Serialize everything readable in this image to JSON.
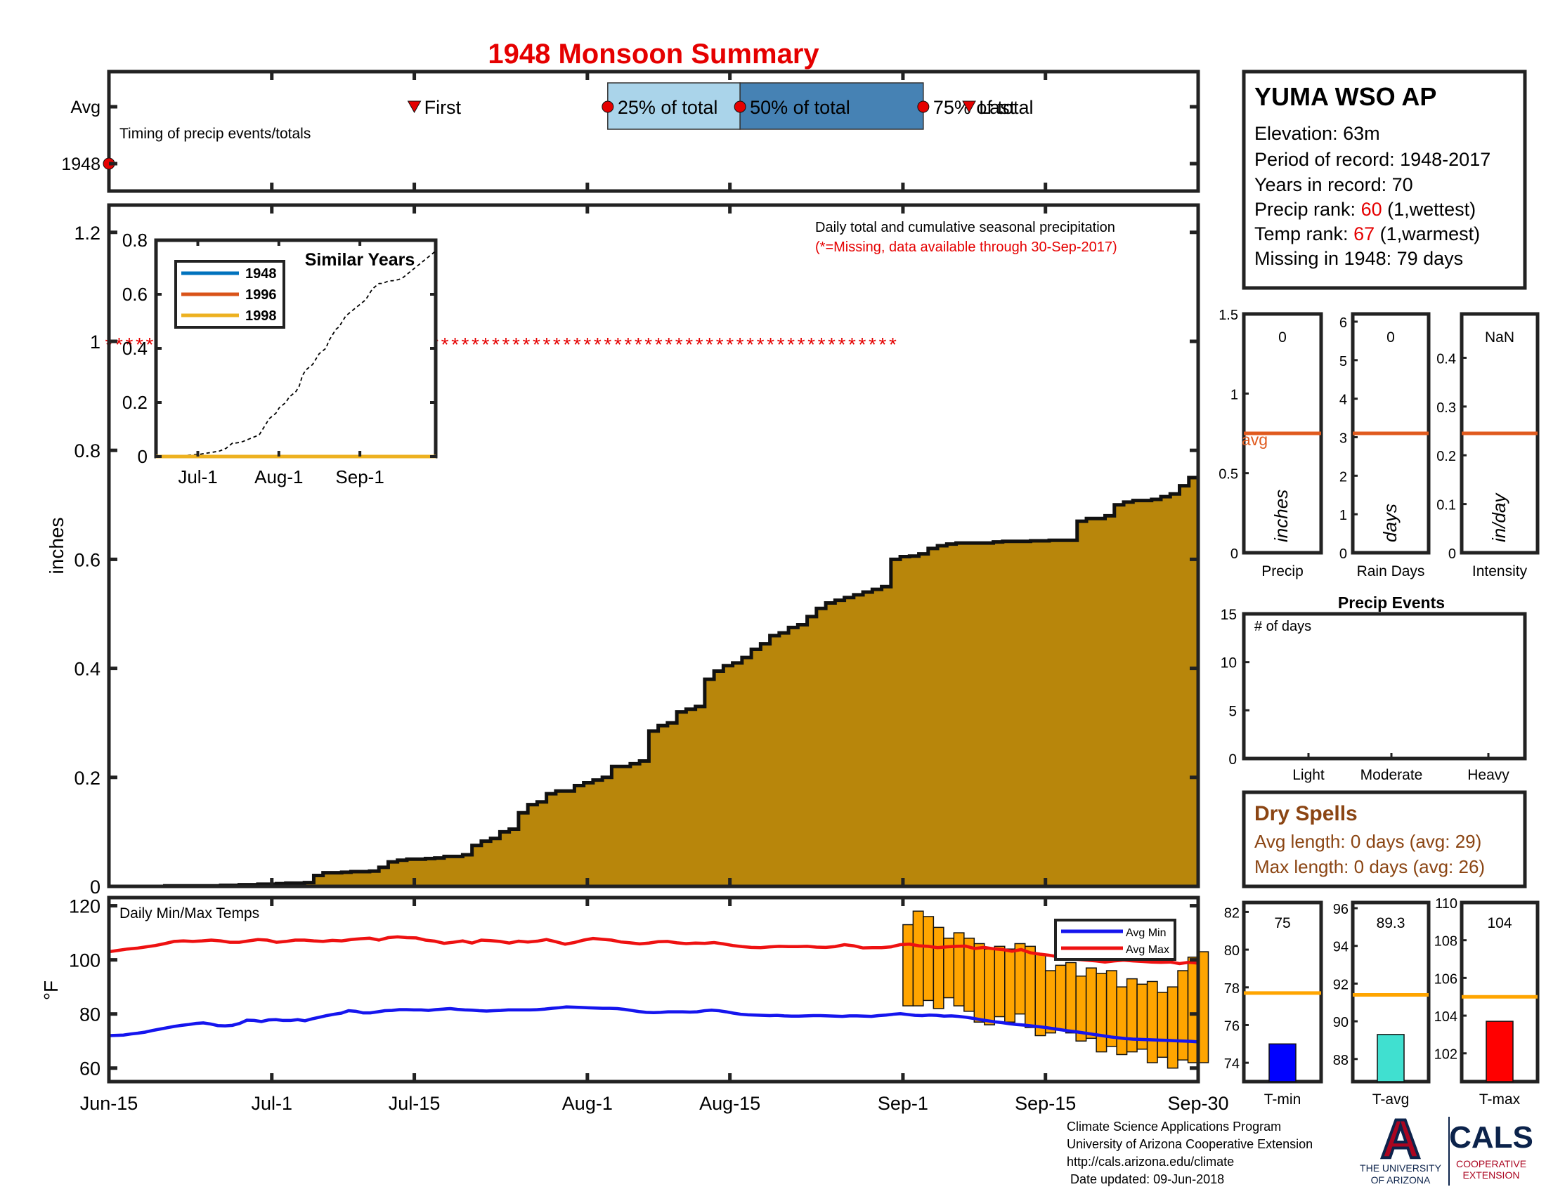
{
  "title": "1948 Monsoon Summary",
  "colors": {
    "title": "#e50000",
    "cum_fill": "#b8860b",
    "max_line": "#ee1111",
    "min_line": "#1515ee",
    "temp_bar": "#ffa500",
    "avg_orange": "#e05a1e",
    "avg_yellow": "#ffa500",
    "q25": "#aad4ea",
    "q50": "#4682b4",
    "dry": "#8b4513"
  },
  "timing": {
    "row_labels": [
      "Avg",
      "1948"
    ],
    "caption": "Timing of precip events/totals",
    "avg_markers": [
      {
        "label": "First",
        "x": 30,
        "kind": "triangle"
      },
      {
        "label": "25% of total",
        "x": 49,
        "kind": "dot"
      },
      {
        "label": "50% of total",
        "x": 62,
        "kind": "dot"
      },
      {
        "label": "75% of total",
        "x": 80,
        "kind": "dot"
      },
      {
        "label": "Last",
        "x": 84.5,
        "kind": "triangle"
      }
    ],
    "year_markers": [
      {
        "x": 0,
        "kind": "dot"
      }
    ]
  },
  "station": {
    "name": "YUMA WSO AP",
    "elevation": "Elevation: 63m",
    "period": "Period of record: 1948-2017",
    "years": "Years in record: 70",
    "precip_rank_label": "Precip rank: ",
    "precip_rank": "60",
    "precip_rank_suffix": " (1,wettest)",
    "temp_rank_label": "Temp rank: ",
    "temp_rank": "67",
    "temp_rank_suffix": " (1,warmest)",
    "missing": "Missing in 1948: 79 days"
  },
  "main_chart": {
    "ylabel": "inches",
    "ylim": [
      0,
      1.25
    ],
    "yticks": [
      "0",
      "0.2",
      "0.4",
      "0.6",
      "0.8",
      "1",
      "1.2"
    ],
    "caption": "Daily total and cumulative seasonal precipitation",
    "missing_note": "(*=Missing, data available through 30-Sep-2017)",
    "missing_marker": "*",
    "missing_y": 1.0,
    "missing_range": [
      0,
      77
    ],
    "xtick_labels": [
      "Jun-15",
      "Jul-1",
      "Jul-15",
      "Aug-1",
      "Aug-15",
      "Sep-1",
      "Sep-15",
      "Sep-30"
    ],
    "xtick_days": [
      0,
      16,
      30,
      47,
      61,
      78,
      92,
      107
    ]
  },
  "chart_data": [
    {
      "type": "area",
      "title": "",
      "caption": "Daily total and cumulative seasonal precipitation",
      "ylabel": "inches",
      "ylim": [
        0,
        1.25
      ],
      "x_start": "Jun-15",
      "x_end": "Sep-30",
      "series": [
        {
          "name": "",
          "step_day": 1,
          "values": [
            0,
            0,
            0,
            0,
            0,
            0,
            0.001,
            0.001,
            0.001,
            0.001,
            0.001,
            0.001,
            0.002,
            0.002,
            0.003,
            0.003,
            0.004,
            0.004,
            0.005,
            0.006,
            0.006,
            0.007,
            0.02,
            0.025,
            0.025,
            0.026,
            0.027,
            0.027,
            0.028,
            0.035,
            0.045,
            0.048,
            0.05,
            0.05,
            0.051,
            0.052,
            0.055,
            0.055,
            0.058,
            0.075,
            0.083,
            0.088,
            0.1,
            0.105,
            0.135,
            0.15,
            0.155,
            0.17,
            0.175,
            0.175,
            0.185,
            0.19,
            0.195,
            0.2,
            0.22,
            0.22,
            0.225,
            0.23,
            0.285,
            0.295,
            0.3,
            0.32,
            0.325,
            0.33,
            0.38,
            0.395,
            0.405,
            0.41,
            0.42,
            0.435,
            0.445,
            0.46,
            0.465,
            0.475,
            0.48,
            0.495,
            0.51,
            0.52,
            0.525,
            0.53,
            0.535,
            0.54,
            0.545,
            0.55,
            0.6,
            0.605,
            0.606,
            0.61,
            0.62,
            0.625,
            0.628,
            0.63,
            0.63,
            0.63,
            0.63,
            0.632,
            0.633,
            0.633,
            0.633,
            0.634,
            0.634,
            0.635,
            0.635,
            0.635,
            0.67,
            0.675,
            0.675,
            0.68,
            0.7,
            0.705,
            0.708,
            0.708,
            0.71,
            0.715,
            0.72,
            0.735,
            0.75
          ]
        }
      ]
    },
    {
      "type": "line",
      "title": "Similar Years",
      "xlim": [
        0,
        107
      ],
      "ylim": [
        0,
        0.8
      ],
      "yticks": [
        "0",
        "0.2",
        "0.4",
        "0.6",
        "0.8"
      ],
      "xtick_labels": [
        "Jul-1",
        "Aug-1",
        "Sep-1"
      ],
      "xtick_days": [
        16,
        47,
        78
      ],
      "series": [
        {
          "name": "1948",
          "color": "#0072bd",
          "values": [
            0,
            0
          ]
        },
        {
          "name": "1996",
          "color": "#d95319",
          "values": [
            0,
            0
          ]
        },
        {
          "name": "1998",
          "color": "#edb120",
          "values": [
            0,
            0
          ]
        },
        {
          "name": "",
          "style": "dashed",
          "color": "#000000",
          "values": [
            0,
            0,
            0,
            0,
            0,
            0,
            0.001,
            0.002,
            0.003,
            0.004,
            0.005,
            0.006,
            0.007,
            0.008,
            0.01,
            0.012,
            0.014,
            0.016,
            0.018,
            0.02,
            0.025,
            0.03,
            0.04,
            0.05,
            0.05,
            0.052,
            0.055,
            0.06,
            0.065,
            0.07,
            0.075,
            0.08,
            0.1,
            0.12,
            0.14,
            0.15,
            0.16,
            0.18,
            0.19,
            0.2,
            0.22,
            0.23,
            0.24,
            0.26,
            0.3,
            0.32,
            0.33,
            0.34,
            0.36,
            0.38,
            0.39,
            0.4,
            0.43,
            0.45,
            0.47,
            0.48,
            0.5,
            0.52,
            0.53,
            0.54,
            0.55,
            0.56,
            0.57,
            0.58,
            0.6,
            0.62,
            0.63,
            0.64,
            0.64,
            0.645,
            0.65,
            0.65,
            0.652,
            0.655,
            0.66,
            0.67,
            0.68,
            0.69,
            0.7,
            0.71,
            0.72,
            0.73,
            0.74,
            0.75,
            0.76
          ]
        }
      ]
    },
    {
      "type": "line",
      "title": "",
      "caption": "Daily Min/Max Temps",
      "ylabel": "°F",
      "ylim": [
        55,
        123
      ],
      "yticks": [
        "60",
        "80",
        "100",
        "120"
      ],
      "legend": [
        "Avg Min",
        "Avg Max"
      ],
      "legend_position": "top-right",
      "series": [
        {
          "name": "Avg Max",
          "color": "#ee1111",
          "values": [
            103,
            103.5,
            104,
            104.3,
            104.8,
            105.3,
            106,
            106.8,
            107,
            106.8,
            107,
            107.3,
            107,
            106.5,
            106.5,
            107,
            107.5,
            107.3,
            106.5,
            106.8,
            107.3,
            107.3,
            107,
            106.8,
            107.2,
            107,
            107.5,
            107.8,
            108,
            107.3,
            108.2,
            108.5,
            108.2,
            108.1,
            107.3,
            106.9,
            106.1,
            106.5,
            107,
            106.2,
            107.3,
            107.1,
            106.8,
            106.2,
            106.9,
            106.6,
            106.9,
            107.5,
            106.7,
            105.8,
            106.4,
            107.3,
            107.9,
            107.6,
            107.3,
            106.6,
            106.3,
            105.9,
            106.2,
            106.7,
            106.8,
            106.3,
            106,
            106.2,
            106.1,
            106.4,
            105.9,
            105.3,
            104.9,
            104.6,
            104.5,
            104.8,
            105,
            104.9,
            104.9,
            105,
            104.7,
            104.6,
            104.9,
            105.6,
            105.2,
            104.4,
            104.5,
            104.5,
            104.8,
            105.6,
            105.8,
            105.2,
            105,
            104.5,
            104.8,
            105,
            105.1,
            104.2,
            104.6,
            104.1,
            103.8,
            103.2,
            103.8,
            102.6,
            102.1,
            101.7,
            101.1,
            100.6,
            100.2,
            99.9,
            99.6,
            99.2,
            99.6,
            99.9,
            99.6,
            99.4,
            99.2,
            99.1,
            99.2,
            98.6,
            99.1,
            98.8
          ]
        },
        {
          "name": "Avg Min",
          "color": "#1515ee",
          "values": [
            72,
            72.1,
            72.2,
            72.6,
            72.9,
            73.3,
            73.9,
            74.4,
            74.9,
            75.4,
            75.8,
            76.1,
            76.5,
            76.7,
            76.3,
            75.7,
            75.6,
            75.8,
            76.5,
            77.7,
            77.6,
            77.2,
            77.8,
            77.9,
            77.6,
            77.6,
            77.9,
            77.5,
            78.2,
            78.8,
            79.4,
            79.9,
            80.3,
            81.2,
            81,
            80.4,
            80.4,
            80.8,
            81.2,
            81.3,
            81.6,
            81.6,
            81.5,
            81.5,
            81.3,
            81.6,
            81.8,
            82,
            81.7,
            81.5,
            81.4,
            81.2,
            81.1,
            81.2,
            81.3,
            81.5,
            81.5,
            81.5,
            81.5,
            81.6,
            81.8,
            82.1,
            82.3,
            82.6,
            82.5,
            82.4,
            82.3,
            82.2,
            82.1,
            82.1,
            82,
            81.7,
            81.3,
            80.9,
            80.6,
            80.5,
            80.6,
            80.8,
            80.8,
            80.8,
            80.7,
            80.8,
            81.2,
            81.4,
            81.2,
            80.8,
            80.3,
            79.9,
            79.7,
            79.6,
            79.5,
            79.4,
            79.5,
            79.3,
            79.2,
            79.2,
            79.3,
            79.4,
            79.4,
            79.3,
            79.2,
            79.1,
            79.3,
            79.3,
            79.2,
            79.1,
            79.4,
            79.6,
            79.9,
            80.1,
            79.8,
            79.5,
            79.4,
            79.6,
            79.5,
            79.2,
            79.3,
            79.1,
            78.8,
            78.4,
            77.9,
            77.5,
            77.1,
            76.8,
            76.4,
            76.1,
            75.9,
            75.6,
            75.3,
            75,
            74.6,
            74.2,
            73.8,
            73.5,
            73.1,
            72.7,
            72.3,
            71.9,
            71.5,
            71.2,
            70.9,
            70.7,
            70.6,
            70.5,
            70.4,
            70.3,
            70.2,
            70.1,
            70,
            69.9,
            69.7
          ]
        },
        {
          "name": "",
          "type": "bar",
          "color": "#ffa500",
          "start_day": 78,
          "ranges": [
            [
              83,
              113
            ],
            [
              83,
              118
            ],
            [
              85,
              116
            ],
            [
              82,
              112
            ],
            [
              86,
              108
            ],
            [
              83,
              110
            ],
            [
              81,
              108
            ],
            [
              77,
              106
            ],
            [
              76,
              104
            ],
            [
              79,
              105
            ],
            [
              77,
              104
            ],
            [
              80,
              106
            ],
            [
              75,
              105
            ],
            [
              72,
              102
            ],
            [
              73,
              96
            ],
            [
              74,
              98
            ],
            [
              73,
              99
            ],
            [
              70,
              94
            ],
            [
              71,
              97
            ],
            [
              66,
              95
            ],
            [
              68,
              96
            ],
            [
              65,
              90
            ],
            [
              66,
              93
            ],
            [
              67,
              91
            ],
            [
              62,
              92
            ],
            [
              64,
              88
            ],
            [
              60,
              90
            ],
            [
              63,
              96
            ],
            [
              62,
              101
            ],
            [
              62,
              103
            ]
          ]
        }
      ]
    },
    {
      "type": "bar",
      "categories": [
        "Precip",
        "Rain Days",
        "Intensity"
      ],
      "value_labels": [
        "0",
        "0",
        "NaN"
      ],
      "units": [
        "inches",
        "days",
        "in/day"
      ],
      "avg_label": "avg",
      "avgs": [
        0.75,
        3.1,
        0.245
      ],
      "ylims": [
        [
          0,
          1.5
        ],
        [
          0,
          6.2
        ],
        [
          0,
          0.49
        ]
      ],
      "yticks": [
        [
          "0",
          "0.5",
          "1",
          "1.5"
        ],
        [
          "0",
          "1",
          "2",
          "3",
          "4",
          "5",
          "6"
        ],
        [
          "0",
          "0.1",
          "0.2",
          "0.3",
          "0.4"
        ]
      ]
    },
    {
      "type": "bar",
      "title": "Precip Events",
      "ylabel": "# of days",
      "categories": [
        "Light",
        "Moderate",
        "Heavy"
      ],
      "values": [
        0,
        0,
        0
      ],
      "ylim": [
        0,
        15
      ],
      "yticks": [
        "0",
        "5",
        "10",
        "15"
      ]
    },
    {
      "type": "bar",
      "categories": [
        "T-min",
        "T-avg",
        "T-max"
      ],
      "value_labels": [
        "75",
        "89.3",
        "104"
      ],
      "values": [
        75,
        89.3,
        103.7
      ],
      "avgs": [
        77.7,
        91.4,
        105
      ],
      "colors": [
        "#0000ff",
        "#40e0d0",
        "#ff0000"
      ],
      "ylims": [
        [
          73,
          82.5
        ],
        [
          86.8,
          96.3
        ],
        [
          100.5,
          110
        ]
      ],
      "yticks": [
        [
          "74",
          "76",
          "78",
          "80",
          "82"
        ],
        [
          "88",
          "90",
          "92",
          "94",
          "96"
        ],
        [
          "102",
          "104",
          "106",
          "108",
          "110"
        ]
      ]
    }
  ],
  "dry_spells": {
    "title": "Dry Spells",
    "avg_length": "Avg length: 0 days (avg: 29)",
    "max_length": "Max length: 0 days (avg: 26)"
  },
  "footer": {
    "lines": [
      "Climate Science Applications Program",
      "University of Arizona Cooperative Extension",
      "http://cals.arizona.edu/climate",
      " Date updated: 09-Jun-2018"
    ],
    "logo_letter": "A",
    "logo_uni": [
      "THE UNIVERSITY",
      "OF ARIZONA"
    ],
    "logo_cals": "CALS",
    "logo_coop": [
      "COOPERATIVE",
      "EXTENSION"
    ]
  }
}
